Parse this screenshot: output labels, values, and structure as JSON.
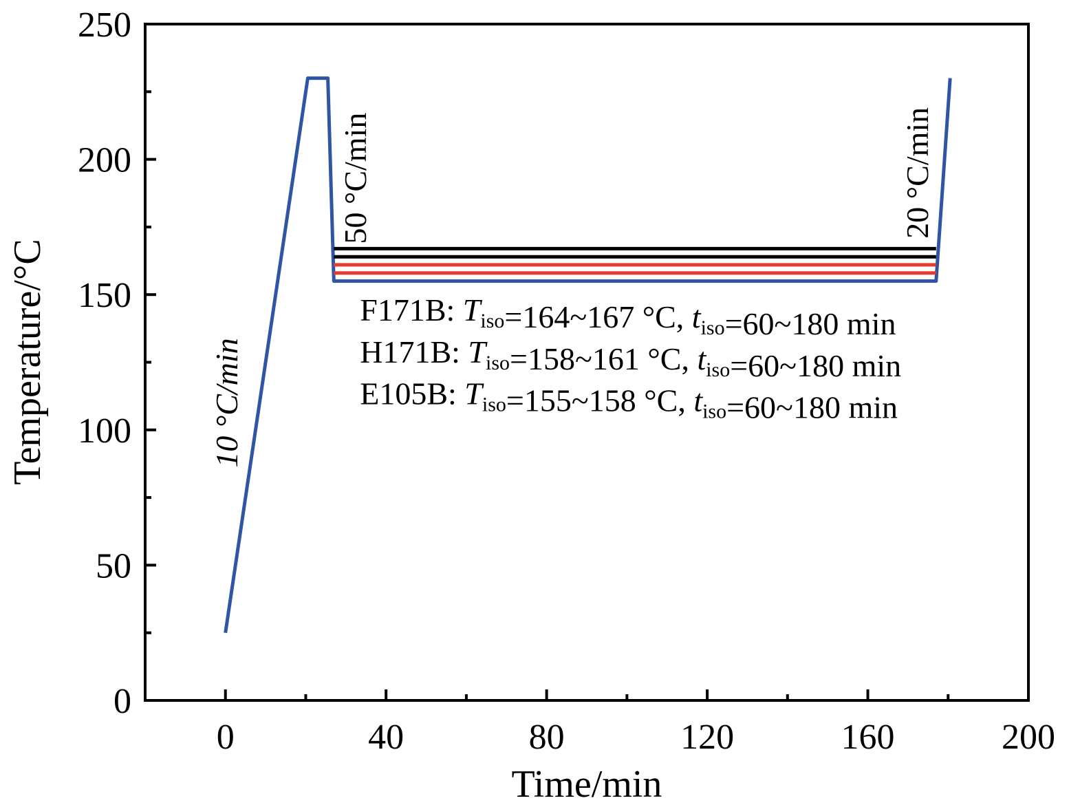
{
  "chart_data": {
    "type": "line",
    "xlabel": "Time/min",
    "ylabel": "Temperature/°C",
    "xlim": [
      -20,
      200
    ],
    "ylim": [
      0,
      250
    ],
    "x_ticks": [
      "0",
      "40",
      "80",
      "120",
      "160",
      "200"
    ],
    "x_tick_values": [
      0,
      40,
      80,
      120,
      160,
      200
    ],
    "y_ticks": [
      "0",
      "50",
      "100",
      "150",
      "200",
      "250"
    ],
    "y_tick_values": [
      0,
      50,
      100,
      150,
      200,
      250
    ],
    "ramp_labels": [
      {
        "text": "10 °C/min",
        "x": 3,
        "y": 110
      },
      {
        "text": "50 °C/min",
        "x": 35,
        "y": 193
      },
      {
        "text": "20 °C/min",
        "x": 175,
        "y": 195
      }
    ],
    "series": [
      {
        "color": "#2f55a4",
        "x": [
          0,
          20.5,
          25.5,
          27,
          177,
          180.5
        ],
        "y": [
          25,
          230,
          230,
          155,
          155,
          230
        ]
      },
      {
        "color": "#e53b2c",
        "x": [
          27,
          177
        ],
        "y": [
          158,
          158
        ]
      },
      {
        "color": "#e53b2c",
        "x": [
          27,
          177
        ],
        "y": [
          161,
          161
        ]
      },
      {
        "color": "#000000",
        "x": [
          27,
          177
        ],
        "y": [
          164,
          164
        ]
      },
      {
        "color": "#000000",
        "x": [
          27,
          177
        ],
        "y": [
          167,
          167
        ]
      }
    ],
    "annotations": [
      {
        "sample": "F171B: ",
        "T": "T",
        "t": "t",
        "sub": "iso",
        "T_range": "=164~167 °C, ",
        "t_range": "=60~180 min"
      },
      {
        "sample": "H171B: ",
        "T": "T",
        "t": "t",
        "sub": "iso",
        "T_range": "=158~161 °C, ",
        "t_range": "=60~180 min"
      },
      {
        "sample": "E105B: ",
        "T": "T",
        "t": "t",
        "sub": "iso",
        "T_range": "=155~158 °C, ",
        "t_range": "=60~180 min"
      }
    ],
    "grid": false,
    "legend": "none"
  }
}
